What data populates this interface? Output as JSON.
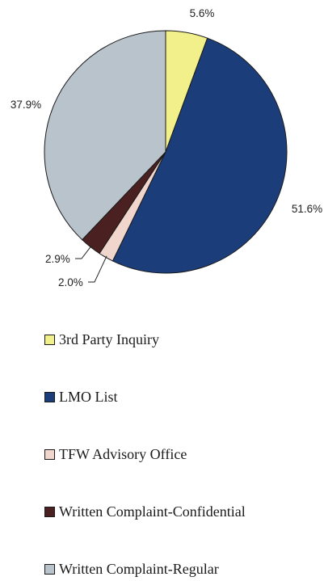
{
  "chart_data": {
    "type": "pie",
    "start_angle_deg": 0,
    "direction": "clockwise",
    "slices": [
      {
        "name": "3rd Party Inquiry",
        "value": 5.6,
        "label": "5.6%",
        "color": "#f2f08a"
      },
      {
        "name": "LMO List",
        "value": 51.6,
        "label": "51.6%",
        "color": "#1b3d7a"
      },
      {
        "name": "TFW Advisory Office",
        "value": 2.0,
        "label": "2.0%",
        "color": "#f0d6cc"
      },
      {
        "name": "Written Complaint-Confidential",
        "value": 2.9,
        "label": "2.9%",
        "color": "#4a2020"
      },
      {
        "name": "Written Complaint-Regular",
        "value": 37.9,
        "label": "37.9%",
        "color": "#b9c3cc"
      }
    ],
    "legend_placement": "bottom"
  }
}
